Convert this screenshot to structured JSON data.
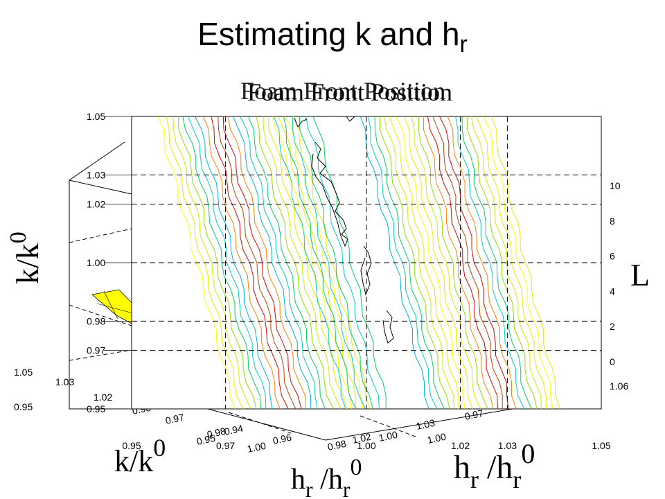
{
  "slide": {
    "title_main": "Estimating k and h",
    "title_sub": "r"
  },
  "chart_data": {
    "type": "contour",
    "title": "Foam Front Position",
    "title_overlap": "Foam Front Position",
    "xlabel_main": "h",
    "xlabel_sub": "r",
    "xlabel_mid": " /h",
    "xlabel_sub2": "r",
    "xlabel_sup": "0",
    "ylabel_main": "k/k",
    "ylabel_sup": "0",
    "zlabel": "L",
    "x_ticks": [
      "0.95",
      "0.97",
      "1.00",
      "1.02",
      "1.03",
      "1.05"
    ],
    "y_ticks": [
      "1.05",
      "1.03",
      "1.02",
      "1.00",
      "0.98",
      "0.97",
      "0.95"
    ],
    "xlim": [
      0.95,
      1.05
    ],
    "ylim": [
      0.95,
      1.05
    ],
    "z_ticks": [
      "0",
      "2",
      "4",
      "6",
      "8",
      "10"
    ],
    "z_range": [
      0,
      10
    ],
    "back3d": {
      "ylabel_main": "k/k",
      "ylabel_sup": "0",
      "xlabel_main": "h",
      "xlabel_sub": "r",
      "xlabel_mid": " /h",
      "xlabel_sub2": "r",
      "xlabel_sup": "0",
      "labels_a": [
        "0.98",
        "0.97",
        "0.95",
        "0.98",
        "0.94",
        "1.00",
        "0.96",
        "0.98",
        "1.02",
        "1.00",
        "1.03",
        "1.00",
        "0.97"
      ],
      "labels_b": [
        "1.05",
        "1.03",
        "1.02",
        "0.95",
        "1.06"
      ]
    },
    "contour_palette": [
      "#ffff00",
      "#e6ec00",
      "#c8f000",
      "#8ce000",
      "#00d060",
      "#00d0c8",
      "#00b0e0",
      "#ff8000",
      "#e00000",
      "#c04000",
      "#a0a000",
      "#60c000"
    ],
    "grid": true
  }
}
